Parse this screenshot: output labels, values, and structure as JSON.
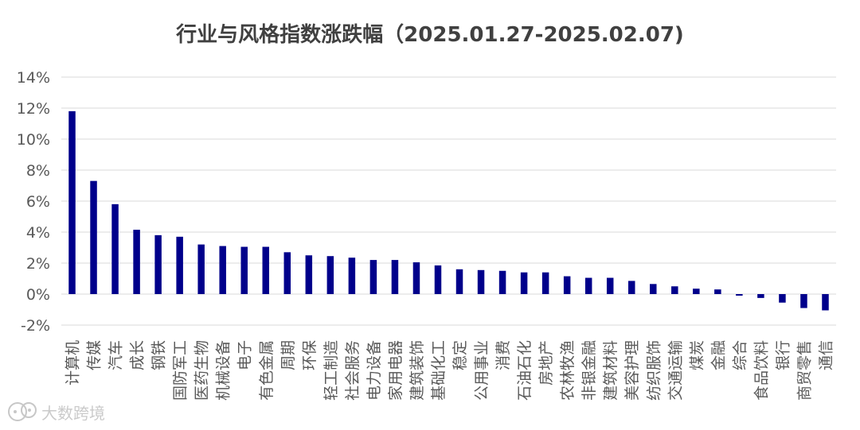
{
  "chart_data": {
    "type": "bar",
    "title": "行业与风格指数涨跌幅（2025.01.27-2025.02.07)",
    "xlabel": "",
    "ylabel": "",
    "ylim": [
      -2,
      14
    ],
    "yticks": [
      -2,
      0,
      2,
      4,
      6,
      8,
      10,
      12,
      14
    ],
    "ytick_labels": [
      "-2%",
      "0%",
      "2%",
      "4%",
      "6%",
      "8%",
      "10%",
      "12%",
      "14%"
    ],
    "grid": true,
    "bar_color": "#00008B",
    "categories": [
      "计算机",
      "传媒",
      "汽车",
      "成长",
      "钢铁",
      "国防军工",
      "医药生物",
      "机械设备",
      "电子",
      "有色金属",
      "周期",
      "环保",
      "轻工制造",
      "社会服务",
      "电力设备",
      "家用电器",
      "建筑装饰",
      "基础化工",
      "稳定",
      "公用事业",
      "消费",
      "石油石化",
      "房地产",
      "农林牧渔",
      "非银金融",
      "建筑材料",
      "美容护理",
      "纺织服饰",
      "交通运输",
      "煤炭",
      "金融",
      "综合",
      "食品饮料",
      "银行",
      "商贸零售",
      "通信"
    ],
    "values": [
      11.8,
      7.3,
      5.8,
      4.15,
      3.8,
      3.7,
      3.2,
      3.1,
      3.05,
      3.05,
      2.7,
      2.5,
      2.45,
      2.35,
      2.2,
      2.2,
      2.05,
      1.85,
      1.6,
      1.55,
      1.5,
      1.4,
      1.4,
      1.15,
      1.05,
      1.05,
      0.85,
      0.65,
      0.5,
      0.35,
      0.3,
      -0.1,
      -0.25,
      -0.55,
      -0.9,
      -1.05
    ]
  },
  "watermark": {
    "text": "大数跨境"
  },
  "colors": {
    "grid": "#d9d9d9",
    "axis_text": "#595959",
    "title": "#404040"
  }
}
